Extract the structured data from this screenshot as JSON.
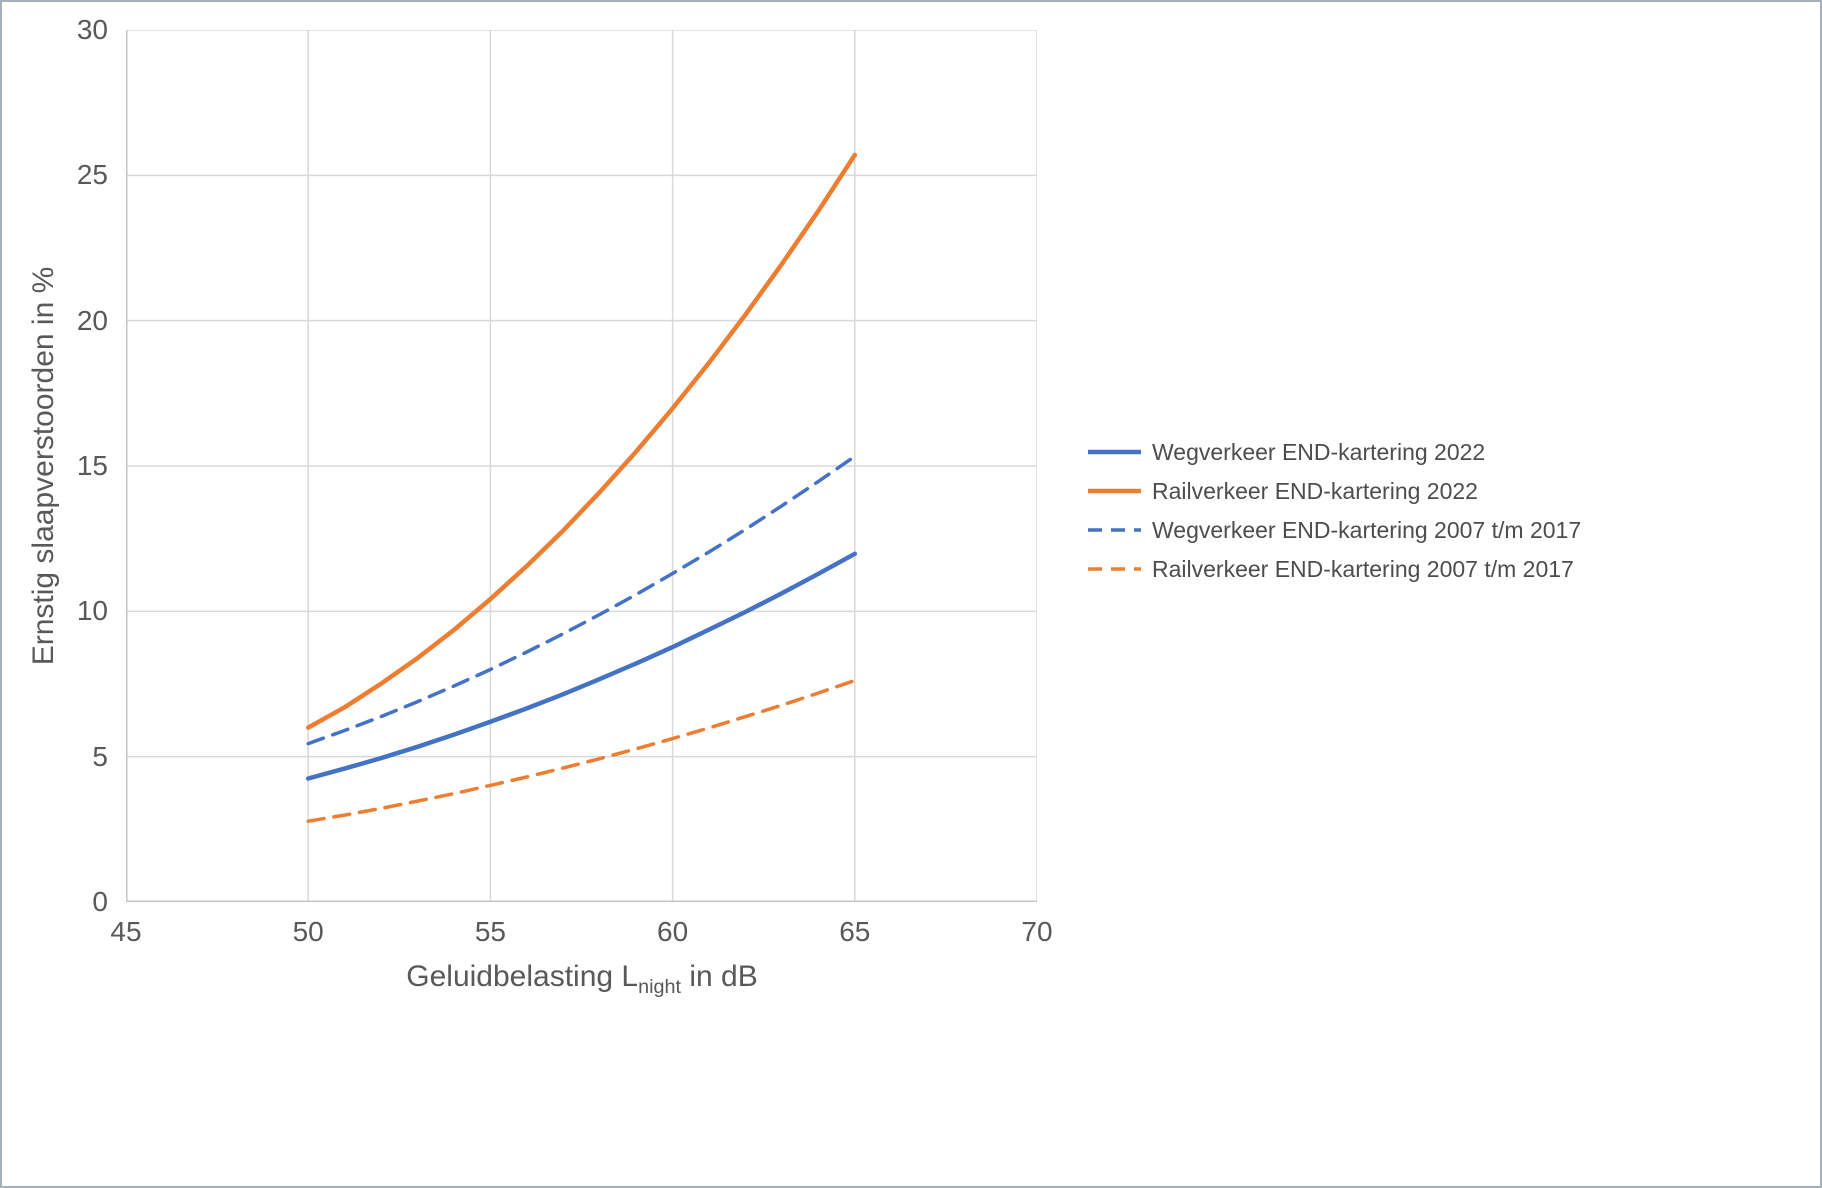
{
  "page": {
    "background": "#ffffff",
    "border_color": "#a6b0bd",
    "gridline_color": "#d9d9d9",
    "axis_line_color": "#c6c6c6",
    "text_color": "#595959"
  },
  "chart_data": {
    "type": "line",
    "title": "",
    "xlabel_parts": {
      "prefix": "Geluidbelasting L",
      "subscript": "night",
      "suffix": " in dB"
    },
    "ylabel": "Ernstig slaapverstoorden in %",
    "xlim": [
      45,
      70
    ],
    "ylim": [
      0,
      30
    ],
    "x_ticks": [
      45,
      50,
      55,
      60,
      65,
      70
    ],
    "y_ticks": [
      0,
      5,
      10,
      15,
      20,
      25,
      30
    ],
    "grid": true,
    "legend_position": "right",
    "x": [
      50,
      51,
      52,
      53,
      54,
      55,
      56,
      57,
      58,
      59,
      60,
      61,
      62,
      63,
      64,
      65
    ],
    "series": [
      {
        "name": "Wegverkeer END-kartering 2022",
        "color": "#4472C4",
        "style": "solid",
        "values": [
          4.25,
          4.59,
          4.95,
          5.34,
          5.76,
          6.2,
          6.66,
          7.15,
          7.67,
          8.21,
          8.77,
          9.37,
          9.98,
          10.62,
          11.29,
          11.98
        ]
      },
      {
        "name": "Railverkeer END-kartering 2022",
        "color": "#ED7D31",
        "style": "solid",
        "values": [
          6.0,
          6.7,
          7.51,
          8.39,
          9.36,
          10.42,
          11.56,
          12.78,
          14.1,
          15.5,
          16.98,
          18.55,
          20.21,
          21.95,
          23.78,
          25.7
        ]
      },
      {
        "name": "Wegverkeer END-kartering 2007 t/m 2017",
        "color": "#4472C4",
        "style": "dashed",
        "values": [
          5.45,
          5.9,
          6.38,
          6.89,
          7.43,
          8.0,
          8.6,
          9.23,
          9.89,
          10.58,
          11.3,
          12.04,
          12.82,
          13.63,
          14.47,
          15.33
        ]
      },
      {
        "name": "Railverkeer END-kartering 2007 t/m 2017",
        "color": "#ED7D31",
        "style": "dashed",
        "values": [
          2.78,
          2.99,
          3.22,
          3.47,
          3.73,
          4.01,
          4.3,
          4.61,
          4.93,
          5.27,
          5.62,
          5.99,
          6.38,
          6.77,
          7.19,
          7.62
        ]
      }
    ]
  }
}
